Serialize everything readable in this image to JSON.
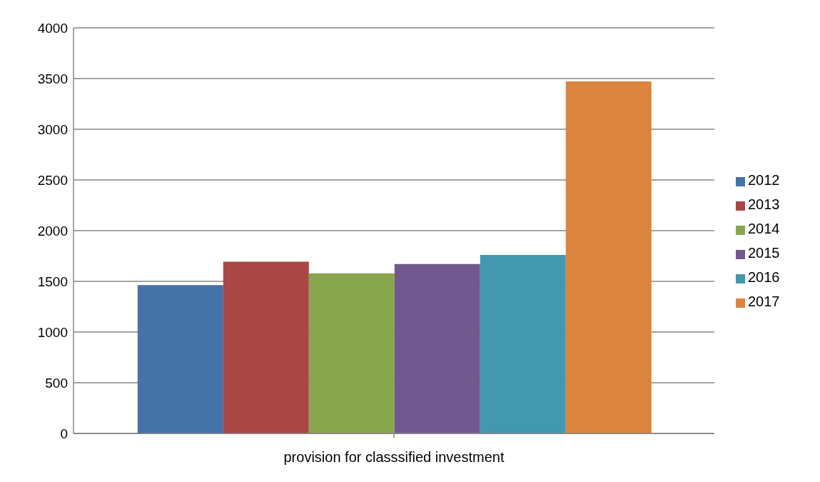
{
  "chart_data": {
    "type": "bar",
    "categories": [
      "provision for classsified investment"
    ],
    "series": [
      {
        "name": "2012",
        "color": "#4572a7",
        "values": [
          1463
        ]
      },
      {
        "name": "2013",
        "color": "#aa4643",
        "values": [
          1694
        ]
      },
      {
        "name": "2014",
        "color": "#89a54e",
        "values": [
          1580
        ]
      },
      {
        "name": "2015",
        "color": "#71588f",
        "values": [
          1670
        ]
      },
      {
        "name": "2016",
        "color": "#4198af",
        "values": [
          1760
        ]
      },
      {
        "name": "2017",
        "color": "#db843d",
        "values": [
          3472
        ]
      }
    ],
    "ylim": [
      0,
      4000
    ],
    "yticks": [
      0,
      500,
      1000,
      1500,
      2000,
      2500,
      3000,
      3500,
      4000
    ],
    "grid": "y",
    "legend": "right"
  }
}
